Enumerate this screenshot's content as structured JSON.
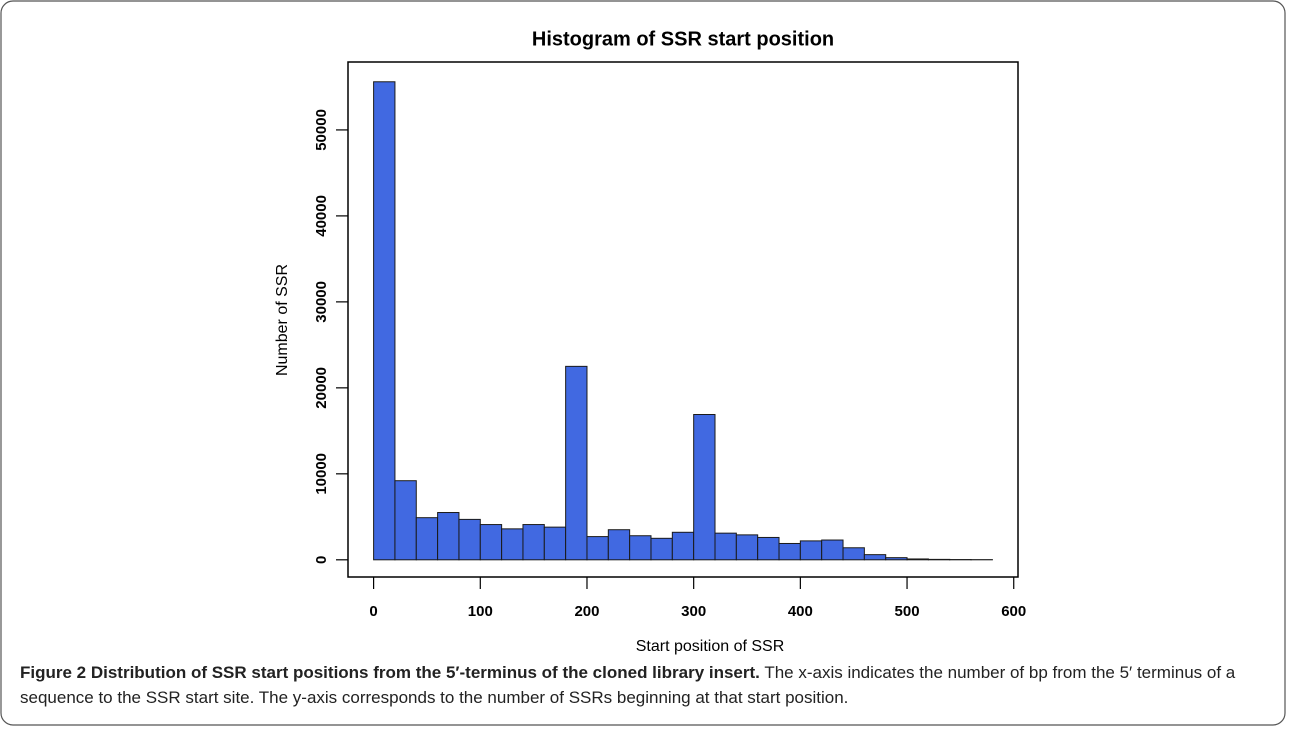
{
  "chart_data": {
    "type": "histogram",
    "title": "Histogram of SSR start position",
    "xlabel": "Start position of SSR",
    "ylabel": "Number of SSR",
    "bins": [
      0,
      20,
      40,
      60,
      80,
      100,
      120,
      140,
      160,
      180,
      200,
      220,
      240,
      260,
      280,
      300,
      320,
      340,
      360,
      380,
      400,
      420,
      440,
      460,
      480,
      500,
      520,
      540,
      560,
      580
    ],
    "values": [
      55600,
      9200,
      4900,
      5500,
      4700,
      4100,
      3600,
      4100,
      3800,
      22500,
      2700,
      3500,
      2800,
      2500,
      3200,
      16900,
      3100,
      2900,
      2600,
      1900,
      2200,
      2300,
      1400,
      600,
      250,
      100,
      50,
      30,
      20
    ],
    "color": "#4169e1",
    "xlim": [
      -24,
      604
    ],
    "ylim": [
      -2000,
      57900
    ],
    "xticks": [
      0,
      100,
      200,
      300,
      400,
      500,
      600
    ],
    "yticks": [
      0,
      10000,
      20000,
      30000,
      40000,
      50000
    ],
    "caption_title": "Figure 2 Distribution of SSR start positions from the 5′-terminus of the cloned library insert.",
    "caption": "The x-axis indicates the number of bp from the 5′ terminus of a sequence to the SSR start site. The y-axis corresponds to the number of SSRs beginning at that start position."
  }
}
